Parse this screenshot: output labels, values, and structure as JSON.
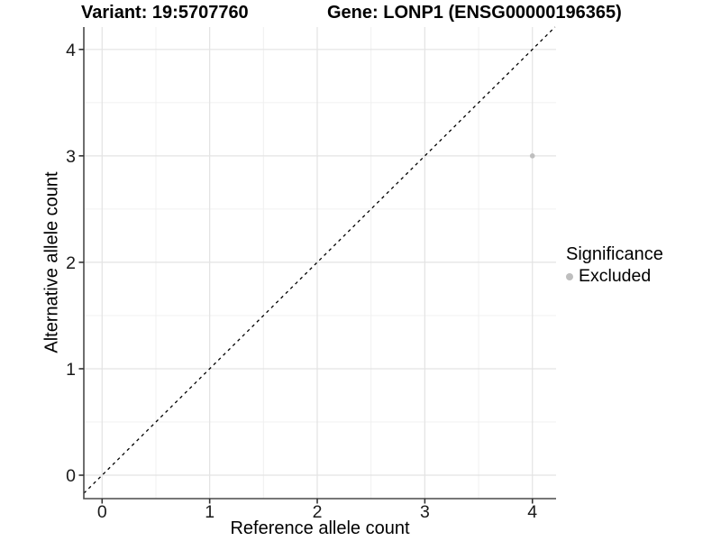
{
  "chart_data": {
    "type": "scatter",
    "titles": {
      "left": "Variant: 19:5707760",
      "right": "Gene: LONP1 (ENSG00000196365)"
    },
    "xlabel": "Reference allele count",
    "ylabel": "Alternative allele count",
    "xlim": [
      -0.17,
      4.22
    ],
    "ylim": [
      -0.22,
      4.21
    ],
    "x_ticks": [
      0,
      1,
      2,
      3,
      4
    ],
    "y_ticks": [
      0,
      1,
      2,
      3,
      4
    ],
    "x_minor": [
      0.5,
      1.5,
      2.5,
      3.5
    ],
    "y_minor": [
      0.5,
      1.5,
      2.5,
      3.5
    ],
    "grid": "major and minor gridlines, no top/right border",
    "series": [
      {
        "name": "Excluded",
        "marker": "circle",
        "color": "#bebebe",
        "points": [
          {
            "x": 4,
            "y": 3
          }
        ]
      }
    ],
    "reference_line": {
      "kind": "identity y=x",
      "style": "dashed",
      "color": "#000000"
    },
    "legend": {
      "title": "Significance",
      "position": "right",
      "entries": [
        {
          "label": "Excluded",
          "color": "#bebebe"
        }
      ]
    }
  },
  "colors": {
    "background": "#ffffff",
    "grid_major": "#e3e3e3",
    "grid_minor": "#f0f0f0",
    "axis_line": "#4a4a4a",
    "tick_mark": "#333333",
    "tick_text": "#1a1a1a",
    "point": "#bebebe"
  }
}
